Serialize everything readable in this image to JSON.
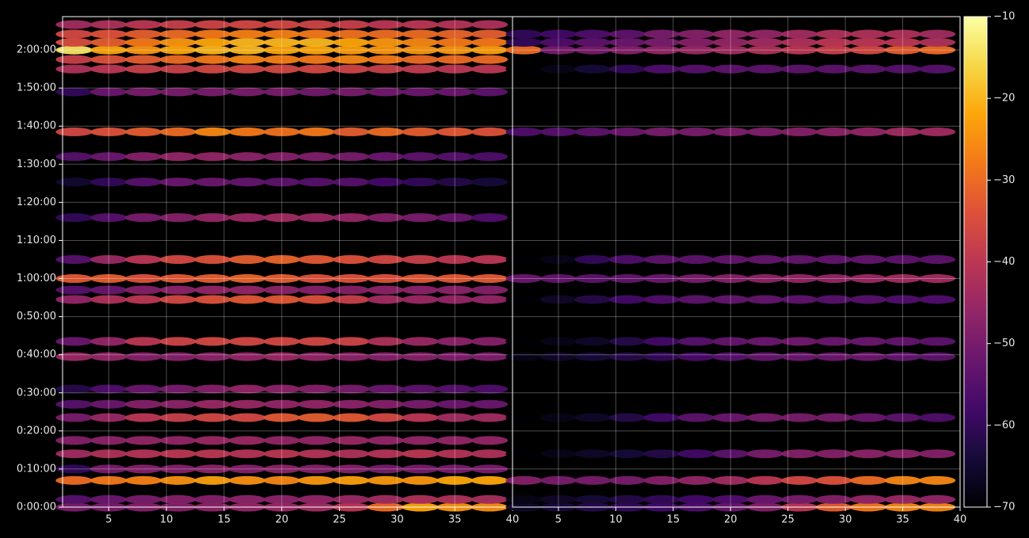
{
  "chart_data": {
    "type": "heatmap",
    "grid": true,
    "colormap": "inferno",
    "xlim": [
      1,
      40
    ],
    "xticks": [
      5,
      10,
      15,
      20,
      25,
      30,
      35,
      40
    ],
    "ylim": [
      0,
      7725
    ],
    "yticks": [
      {
        "value": 0,
        "label": "0:00:00"
      },
      {
        "value": 600,
        "label": "0:10:00"
      },
      {
        "value": 1200,
        "label": "0:20:00"
      },
      {
        "value": 1800,
        "label": "0:30:00"
      },
      {
        "value": 2400,
        "label": "0:40:00"
      },
      {
        "value": 3000,
        "label": "0:50:00"
      },
      {
        "value": 3600,
        "label": "1:00:00"
      },
      {
        "value": 4200,
        "label": "1:10:00"
      },
      {
        "value": 4800,
        "label": "1:20:00"
      },
      {
        "value": 5400,
        "label": "1:30:00"
      },
      {
        "value": 6000,
        "label": "1:40:00"
      },
      {
        "value": 6600,
        "label": "1:50:00"
      },
      {
        "value": 7200,
        "label": "2:00:00"
      }
    ],
    "clim": [
      -70,
      -10
    ],
    "cticks": [
      {
        "value": -70,
        "label": "−70"
      },
      {
        "value": -60,
        "label": "−60"
      },
      {
        "value": -50,
        "label": "−50"
      },
      {
        "value": -40,
        "label": "−40"
      },
      {
        "value": -30,
        "label": "−30"
      },
      {
        "value": -20,
        "label": "−20"
      },
      {
        "value": -10,
        "label": "−10"
      }
    ],
    "panels": [
      {
        "x": [
          2,
          5,
          8,
          11,
          14,
          17,
          20,
          23,
          26,
          29,
          32,
          35,
          38
        ],
        "rows": [
          {
            "y": 0,
            "values": [
              -50,
              -50,
              -48,
              -48,
              -47,
              -46,
              -45,
              -44,
              -40,
              -30,
              -22,
              -24,
              -25
            ]
          },
          {
            "y": 120,
            "values": [
              -55,
              -52,
              -50,
              -48,
              -48,
              -47,
              -47,
              -46,
              -45,
              -44,
              -42,
              -42,
              -43
            ]
          },
          {
            "y": 420,
            "values": [
              -30,
              -28,
              -27,
              -25,
              -23,
              -25,
              -26,
              -24,
              -23,
              -24,
              -24,
              -22,
              -22
            ]
          },
          {
            "y": 600,
            "values": [
              -60,
              -50,
              -48,
              -48,
              -47,
              -48,
              -47,
              -48,
              -48,
              -50,
              -50,
              -50,
              -50
            ]
          },
          {
            "y": 840,
            "values": [
              -44,
              -42,
              -41,
              -40,
              -40,
              -41,
              -40,
              -41,
              -42,
              -41,
              -40,
              -41,
              -42
            ]
          },
          {
            "y": 1050,
            "values": [
              -48,
              -47,
              -46,
              -46,
              -45,
              -45,
              -46,
              -46,
              -45,
              -46,
              -46,
              -46,
              -46
            ]
          },
          {
            "y": 1410,
            "values": [
              -50,
              -45,
              -40,
              -38,
              -36,
              -36,
              -33,
              -32,
              -33,
              -36,
              -40,
              -44,
              -44
            ]
          },
          {
            "y": 1620,
            "values": [
              -55,
              -52,
              -48,
              -47,
              -45,
              -45,
              -46,
              -46,
              -47,
              -48,
              -50,
              -52,
              -52
            ]
          },
          {
            "y": 1860,
            "values": [
              -62,
              -56,
              -52,
              -50,
              -48,
              -46,
              -47,
              -48,
              -50,
              -52,
              -54,
              -55,
              -56
            ]
          },
          {
            "y": 2370,
            "values": [
              -45,
              -46,
              -48,
              -48,
              -47,
              -46,
              -45,
              -46,
              -47,
              -48,
              -48,
              -49,
              -49
            ]
          },
          {
            "y": 2610,
            "values": [
              -52,
              -46,
              -40,
              -37,
              -36,
              -36,
              -36,
              -36,
              -37,
              -42,
              -45,
              -47,
              -48
            ]
          },
          {
            "y": 3270,
            "values": [
              -46,
              -42,
              -40,
              -36,
              -34,
              -33,
              -33,
              -34,
              -38,
              -44,
              -45,
              -46,
              -46
            ]
          },
          {
            "y": 3420,
            "values": [
              -55,
              -52,
              -48,
              -47,
              -46,
              -46,
              -47,
              -48,
              -48,
              -47,
              -47,
              -47,
              -48
            ]
          },
          {
            "y": 3600,
            "values": [
              -33,
              -32,
              -34,
              -33,
              -32,
              -31,
              -32,
              -34,
              -34,
              -34,
              -33,
              -33,
              -33
            ]
          },
          {
            "y": 3900,
            "values": [
              -55,
              -45,
              -40,
              -36,
              -34,
              -32,
              -31,
              -33,
              -34,
              -36,
              -38,
              -40,
              -40
            ]
          },
          {
            "y": 4560,
            "values": [
              -60,
              -55,
              -50,
              -48,
              -46,
              -45,
              -44,
              -45,
              -46,
              -48,
              -50,
              -52,
              -56
            ]
          },
          {
            "y": 5120,
            "values": [
              -65,
              -60,
              -55,
              -52,
              -52,
              -53,
              -54,
              -55,
              -55,
              -58,
              -60,
              -62,
              -64
            ]
          },
          {
            "y": 5520,
            "values": [
              -55,
              -52,
              -48,
              -46,
              -46,
              -47,
              -48,
              -49,
              -50,
              -52,
              -54,
              -55,
              -56
            ]
          },
          {
            "y": 5910,
            "values": [
              -36,
              -34,
              -32,
              -30,
              -26,
              -28,
              -29,
              -28,
              -32,
              -30,
              -32,
              -33,
              -34
            ]
          },
          {
            "y": 6540,
            "values": [
              -60,
              -52,
              -50,
              -50,
              -50,
              -50,
              -50,
              -51,
              -50,
              -51,
              -52,
              -52,
              -54
            ]
          },
          {
            "y": 6900,
            "values": [
              -42,
              -40,
              -38,
              -38,
              -36,
              -36,
              -36,
              -36,
              -37,
              -38,
              -39,
              -40,
              -40
            ]
          },
          {
            "y": 7050,
            "values": [
              -38,
              -34,
              -32,
              -30,
              -28,
              -26,
              -27,
              -28,
              -26,
              -28,
              -30,
              -30,
              -30
            ]
          },
          {
            "y": 7200,
            "values": [
              -14,
              -22,
              -24,
              -22,
              -20,
              -20,
              -22,
              -22,
              -23,
              -24,
              -24,
              -24,
              -23
            ]
          },
          {
            "y": 7320,
            "values": [
              -35,
              -32,
              -28,
              -24,
              -22,
              -20,
              -20,
              -20,
              -22,
              -24,
              -26,
              -28,
              -28
            ]
          },
          {
            "y": 7450,
            "values": [
              -36,
              -34,
              -32,
              -30,
              -28,
              -27,
              -27,
              -28,
              -29,
              -30,
              -30,
              -31,
              -32
            ]
          },
          {
            "y": 7600,
            "values": [
              -44,
              -42,
              -40,
              -38,
              -37,
              -36,
              -36,
              -37,
              -38,
              -40,
              -40,
              -41,
              -42
            ]
          }
        ]
      },
      {
        "x": [
          2,
          5,
          8,
          11,
          14,
          17,
          20,
          23,
          26,
          29,
          32,
          35,
          38
        ],
        "rows": [
          {
            "y": 0,
            "values": [
              -66,
              -64,
              -62,
              -60,
              -58,
              -56,
              -52,
              -48,
              -40,
              -32,
              -28,
              -26,
              -26
            ]
          },
          {
            "y": 120,
            "values": [
              -68,
              -66,
              -64,
              -62,
              -60,
              -58,
              -56,
              -52,
              -50,
              -48,
              -46,
              -45,
              -46
            ]
          },
          {
            "y": 420,
            "values": [
              -48,
              -50,
              -50,
              -50,
              -48,
              -46,
              -44,
              -40,
              -36,
              -34,
              -30,
              -26,
              -26
            ]
          },
          {
            "y": 840,
            "values": [
              -70,
              -68,
              -66,
              -64,
              -62,
              -58,
              -54,
              -50,
              -48,
              -48,
              -47,
              -47,
              -48
            ]
          },
          {
            "y": 1410,
            "values": [
              -70,
              -68,
              -66,
              -62,
              -58,
              -54,
              -52,
              -50,
              -50,
              -50,
              -52,
              -54,
              -56
            ]
          },
          {
            "y": 2370,
            "values": [
              -68,
              -66,
              -64,
              -62,
              -60,
              -57,
              -55,
              -53,
              -52,
              -52,
              -52,
              -53,
              -54
            ]
          },
          {
            "y": 2610,
            "values": [
              -70,
              -68,
              -66,
              -62,
              -58,
              -55,
              -53,
              -52,
              -51,
              -52,
              -52,
              -53,
              -54
            ]
          },
          {
            "y": 3270,
            "values": [
              -70,
              -66,
              -62,
              -58,
              -56,
              -54,
              -53,
              -53,
              -54,
              -55,
              -55,
              -56,
              -56
            ]
          },
          {
            "y": 3600,
            "values": [
              -52,
              -53,
              -54,
              -53,
              -52,
              -50,
              -48,
              -47,
              -46,
              -46,
              -45,
              -44,
              -44
            ]
          },
          {
            "y": 3900,
            "values": [
              -70,
              -68,
              -60,
              -56,
              -54,
              -54,
              -53,
              -53,
              -53,
              -53,
              -53,
              -54,
              -54
            ]
          },
          {
            "y": 5910,
            "values": [
              -56,
              -55,
              -54,
              -52,
              -50,
              -50,
              -49,
              -49,
              -48,
              -47,
              -46,
              -44,
              -44
            ]
          },
          {
            "y": 6900,
            "values": [
              -70,
              -68,
              -64,
              -60,
              -56,
              -55,
              -54,
              -54,
              -54,
              -54,
              -54,
              -55,
              -55
            ]
          },
          {
            "y": 7200,
            "values": [
              -30,
              -50,
              -50,
              -48,
              -46,
              -45,
              -44,
              -42,
              -40,
              -38,
              -36,
              -32,
              -30
            ]
          },
          {
            "y": 7320,
            "values": [
              -60,
              -56,
              -54,
              -52,
              -50,
              -48,
              -46,
              -44,
              -42,
              -40,
              -40,
              -40,
              -42
            ]
          },
          {
            "y": 7450,
            "values": [
              -60,
              -58,
              -56,
              -54,
              -50,
              -48,
              -46,
              -46,
              -44,
              -42,
              -42,
              -42,
              -44
            ]
          }
        ]
      }
    ]
  }
}
